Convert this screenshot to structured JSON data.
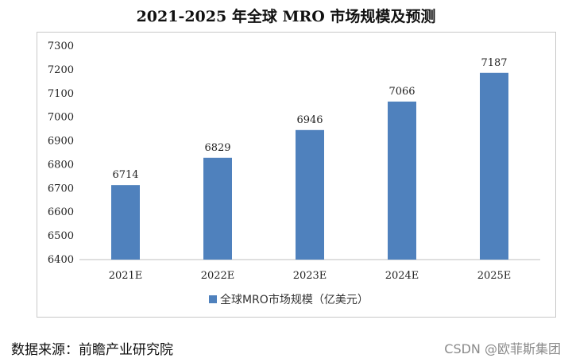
{
  "page": {
    "title": "2021-2025 年全球 MRO 市场规模及预测",
    "source": "数据来源：前瞻产业研究院",
    "watermark": "CSDN @欧菲斯集团"
  },
  "chart_data": {
    "type": "bar",
    "categories": [
      "2021E",
      "2022E",
      "2023E",
      "2024E",
      "2025E"
    ],
    "series": [
      {
        "name": "全球MRO市场规模（亿美元）",
        "values": [
          6714,
          6829,
          6946,
          7066,
          7187
        ],
        "color": "#4f81bd"
      }
    ],
    "ylim": [
      6400,
      7300
    ],
    "yticks": [
      6400,
      6500,
      6600,
      6700,
      6800,
      6900,
      7000,
      7100,
      7200,
      7300
    ],
    "grid": false,
    "legend": "bottom",
    "data_labels": true
  }
}
